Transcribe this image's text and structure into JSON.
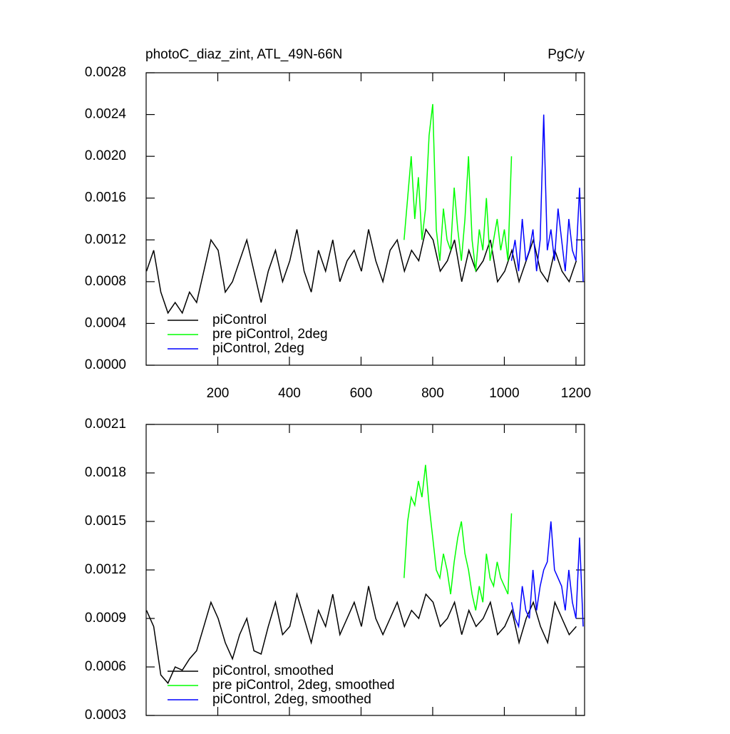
{
  "chart_data": [
    {
      "type": "line",
      "title": "photoC_diaz_zint, ATL_49N-66N",
      "unit_label": "PgC/y",
      "xlim": [
        0,
        1224
      ],
      "xticks": [
        200,
        400,
        600,
        800,
        1000,
        1200
      ],
      "ylim": [
        0,
        0.0028
      ],
      "yticks": [
        {
          "value": 0,
          "label": "0.0000"
        },
        0.0004,
        0.0008,
        0.0012,
        0.0016,
        {
          "value": 0.002,
          "label": "0.0020"
        },
        0.0024,
        0.0028
      ],
      "series": [
        {
          "name": "piControl",
          "color": "#000000",
          "x": [
            1,
            21,
            41,
            61,
            81,
            101,
            121,
            141,
            161,
            181,
            201,
            221,
            241,
            261,
            281,
            301,
            321,
            341,
            361,
            381,
            401,
            421,
            441,
            461,
            481,
            501,
            521,
            541,
            561,
            581,
            601,
            621,
            641,
            661,
            681,
            701,
            721,
            741,
            761,
            781,
            801,
            821,
            841,
            861,
            881,
            901,
            921,
            941,
            961,
            981,
            1001,
            1021,
            1041,
            1061,
            1081,
            1101,
            1121,
            1141,
            1161,
            1181,
            1201
          ],
          "values": [
            0.0009,
            0.0011,
            0.0007,
            0.0005,
            0.0006,
            0.0005,
            0.0007,
            0.0006,
            0.0009,
            0.0012,
            0.0011,
            0.0007,
            0.0008,
            0.001,
            0.0012,
            0.0009,
            0.0006,
            0.0009,
            0.0011,
            0.0008,
            0.001,
            0.0013,
            0.0009,
            0.0007,
            0.0011,
            0.0009,
            0.0012,
            0.0008,
            0.001,
            0.0011,
            0.0009,
            0.0013,
            0.001,
            0.0008,
            0.0011,
            0.0012,
            0.0009,
            0.0011,
            0.001,
            0.0013,
            0.0012,
            0.0009,
            0.001,
            0.0012,
            0.0008,
            0.0011,
            0.0009,
            0.001,
            0.0012,
            0.0008,
            0.0009,
            0.0011,
            0.0008,
            0.001,
            0.0012,
            0.0009,
            0.0008,
            0.0011,
            0.0009,
            0.0008,
            0.001
          ]
        },
        {
          "name": "pre piControl, 2deg",
          "color": "#00ff00",
          "x": [
            720,
            730,
            740,
            750,
            760,
            770,
            780,
            790,
            800,
            810,
            820,
            830,
            840,
            850,
            860,
            870,
            880,
            890,
            900,
            910,
            920,
            930,
            940,
            950,
            960,
            970,
            980,
            990,
            1000,
            1010,
            1020
          ],
          "values": [
            0.0012,
            0.0016,
            0.002,
            0.0014,
            0.0018,
            0.0012,
            0.0015,
            0.0022,
            0.0025,
            0.0013,
            0.001,
            0.0015,
            0.0012,
            0.0011,
            0.0017,
            0.0013,
            0.001,
            0.0014,
            0.002,
            0.0012,
            0.0009,
            0.0013,
            0.0011,
            0.0016,
            0.001,
            0.0012,
            0.0014,
            0.0011,
            0.0013,
            0.001,
            0.002
          ]
        },
        {
          "name": "piControl, 2deg",
          "color": "#0000ff",
          "x": [
            1020,
            1030,
            1040,
            1050,
            1060,
            1070,
            1080,
            1090,
            1100,
            1110,
            1120,
            1130,
            1140,
            1150,
            1160,
            1170,
            1180,
            1190,
            1200,
            1210,
            1220
          ],
          "values": [
            0.001,
            0.0012,
            0.0009,
            0.0014,
            0.001,
            0.0011,
            0.0013,
            0.0009,
            0.0012,
            0.0024,
            0.0011,
            0.0013,
            0.001,
            0.0015,
            0.0012,
            0.0009,
            0.0014,
            0.0011,
            0.001,
            0.0017,
            0.0008
          ]
        }
      ]
    },
    {
      "type": "line",
      "xlim": [
        0,
        1224
      ],
      "ylim": [
        0.0003,
        0.0021
      ],
      "yticks": [
        0.0003,
        0.0006,
        0.0009,
        0.0012,
        0.0015,
        0.0018,
        0.0021
      ],
      "series": [
        {
          "name": "piControl, smoothed",
          "color": "#000000",
          "x": [
            1,
            21,
            41,
            61,
            81,
            101,
            121,
            141,
            161,
            181,
            201,
            221,
            241,
            261,
            281,
            301,
            321,
            341,
            361,
            381,
            401,
            421,
            441,
            461,
            481,
            501,
            521,
            541,
            561,
            581,
            601,
            621,
            641,
            661,
            681,
            701,
            721,
            741,
            761,
            781,
            801,
            821,
            841,
            861,
            881,
            901,
            921,
            941,
            961,
            981,
            1001,
            1021,
            1041,
            1061,
            1081,
            1101,
            1121,
            1141,
            1161,
            1181,
            1201
          ],
          "values": [
            0.00095,
            0.00085,
            0.00055,
            0.0005,
            0.0006,
            0.00058,
            0.00065,
            0.0007,
            0.00085,
            0.001,
            0.0009,
            0.00075,
            0.00065,
            0.0008,
            0.0009,
            0.0007,
            0.00068,
            0.00085,
            0.001,
            0.0008,
            0.00085,
            0.00105,
            0.0009,
            0.00075,
            0.00095,
            0.00085,
            0.00105,
            0.0008,
            0.0009,
            0.001,
            0.00085,
            0.0011,
            0.0009,
            0.0008,
            0.0009,
            0.001,
            0.00085,
            0.00095,
            0.0009,
            0.00105,
            0.001,
            0.00085,
            0.0009,
            0.001,
            0.0008,
            0.00095,
            0.00085,
            0.0009,
            0.001,
            0.0008,
            0.00085,
            0.00095,
            0.00075,
            0.0009,
            0.001,
            0.00085,
            0.00075,
            0.001,
            0.0009,
            0.0008,
            0.00085
          ]
        },
        {
          "name": "pre piControl, 2deg, smoothed",
          "color": "#00ff00",
          "x": [
            720,
            730,
            740,
            750,
            760,
            770,
            780,
            790,
            800,
            810,
            820,
            830,
            840,
            850,
            860,
            870,
            880,
            890,
            900,
            910,
            920,
            930,
            940,
            950,
            960,
            970,
            980,
            990,
            1000,
            1010,
            1020
          ],
          "values": [
            0.00115,
            0.0015,
            0.00165,
            0.0016,
            0.00175,
            0.00165,
            0.00185,
            0.0016,
            0.0014,
            0.0012,
            0.00115,
            0.0013,
            0.0012,
            0.00105,
            0.00125,
            0.0014,
            0.0015,
            0.0013,
            0.0012,
            0.00105,
            0.00095,
            0.0011,
            0.001,
            0.0013,
            0.00115,
            0.0011,
            0.00125,
            0.00115,
            0.0011,
            0.00105,
            0.00155
          ]
        },
        {
          "name": "piControl, 2deg, smoothed",
          "color": "#0000ff",
          "x": [
            1020,
            1030,
            1040,
            1050,
            1060,
            1070,
            1080,
            1090,
            1100,
            1110,
            1120,
            1130,
            1140,
            1150,
            1160,
            1170,
            1180,
            1190,
            1200,
            1210,
            1220
          ],
          "values": [
            0.001,
            0.0009,
            0.00085,
            0.0011,
            0.00095,
            0.0009,
            0.0012,
            0.00095,
            0.0011,
            0.0012,
            0.00125,
            0.0015,
            0.0012,
            0.00115,
            0.0011,
            0.00095,
            0.0012,
            0.001,
            0.0009,
            0.0014,
            0.00085
          ]
        }
      ]
    }
  ]
}
